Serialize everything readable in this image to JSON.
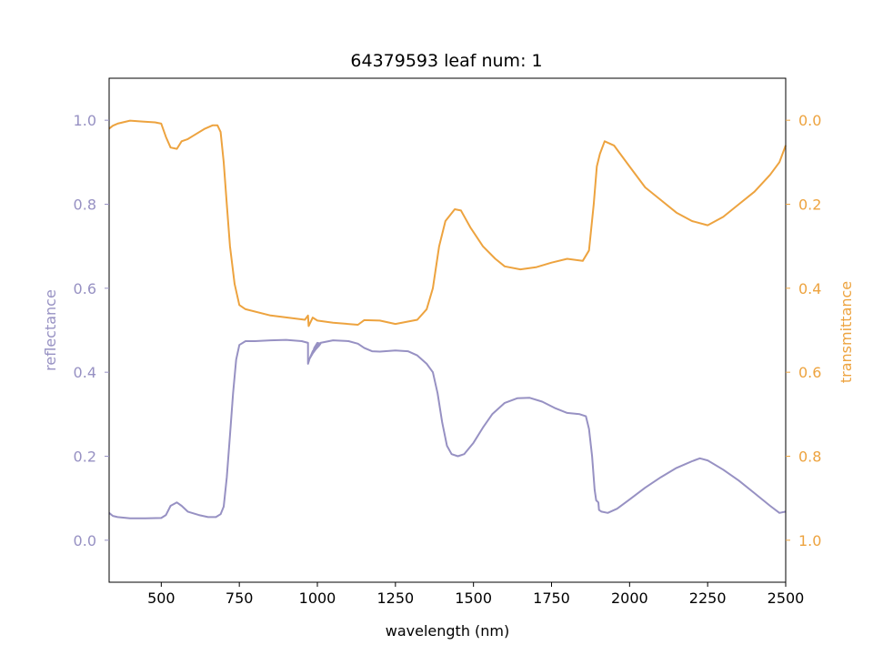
{
  "chart_data": {
    "type": "line",
    "title": "64379593 leaf num: 1",
    "xlabel": "wavelength (nm)",
    "ylabel_left": "reflectance",
    "ylabel_right": "transmittance",
    "xlim": [
      333,
      2500
    ],
    "ylim_left": [
      -0.1,
      1.1
    ],
    "ylim_right": [
      1.1,
      -0.1
    ],
    "right_axis_inverted": true,
    "grid": false,
    "x_ticks": [
      500,
      750,
      1000,
      1250,
      1500,
      1750,
      2000,
      2250,
      2500
    ],
    "x_tick_labels": [
      "500",
      "750",
      "1000",
      "1250",
      "1500",
      "1750",
      "2000",
      "2250",
      "2500"
    ],
    "y_left_ticks": [
      0.0,
      0.2,
      0.4,
      0.6,
      0.8,
      1.0
    ],
    "y_left_tick_labels": [
      "0.0",
      "0.2",
      "0.4",
      "0.6",
      "0.8",
      "1.0"
    ],
    "y_right_ticks": [
      0.0,
      0.2,
      0.4,
      0.6,
      0.8,
      1.0
    ],
    "y_right_tick_labels": [
      "0.0",
      "0.2",
      "0.4",
      "0.6",
      "0.8",
      "1.0"
    ],
    "colors": {
      "reflectance": "#9791c3",
      "transmittance": "#eda33f"
    },
    "series": [
      {
        "axis": "left",
        "color": "#9791c3",
        "points": [
          [
            333,
            0.065
          ],
          [
            345,
            0.058
          ],
          [
            360,
            0.055
          ],
          [
            400,
            0.052
          ],
          [
            450,
            0.052
          ],
          [
            500,
            0.053
          ],
          [
            515,
            0.06
          ],
          [
            530,
            0.082
          ],
          [
            550,
            0.09
          ],
          [
            565,
            0.082
          ],
          [
            585,
            0.068
          ],
          [
            620,
            0.06
          ],
          [
            650,
            0.055
          ],
          [
            675,
            0.055
          ],
          [
            690,
            0.062
          ],
          [
            700,
            0.08
          ],
          [
            710,
            0.15
          ],
          [
            720,
            0.25
          ],
          [
            730,
            0.35
          ],
          [
            740,
            0.43
          ],
          [
            750,
            0.465
          ],
          [
            770,
            0.474
          ],
          [
            800,
            0.474
          ],
          [
            850,
            0.476
          ],
          [
            900,
            0.477
          ],
          [
            950,
            0.474
          ],
          [
            970,
            0.47
          ],
          [
            970,
            0.42
          ],
          [
            975,
            0.432
          ],
          [
            985,
            0.445
          ],
          [
            995,
            0.455
          ],
          [
            1005,
            0.463
          ],
          [
            1010,
            0.468
          ],
          [
            1000,
            0.47
          ],
          [
            990,
            0.458
          ],
          [
            985,
            0.445
          ],
          [
            975,
            0.432
          ],
          [
            985,
            0.45
          ],
          [
            1000,
            0.465
          ],
          [
            1010,
            0.47
          ],
          [
            1050,
            0.476
          ],
          [
            1100,
            0.474
          ],
          [
            1130,
            0.468
          ],
          [
            1150,
            0.458
          ],
          [
            1175,
            0.45
          ],
          [
            1200,
            0.449
          ],
          [
            1250,
            0.452
          ],
          [
            1290,
            0.45
          ],
          [
            1320,
            0.44
          ],
          [
            1350,
            0.42
          ],
          [
            1370,
            0.4
          ],
          [
            1385,
            0.35
          ],
          [
            1400,
            0.28
          ],
          [
            1415,
            0.225
          ],
          [
            1430,
            0.205
          ],
          [
            1450,
            0.2
          ],
          [
            1470,
            0.205
          ],
          [
            1500,
            0.232
          ],
          [
            1530,
            0.268
          ],
          [
            1560,
            0.3
          ],
          [
            1600,
            0.327
          ],
          [
            1640,
            0.338
          ],
          [
            1680,
            0.339
          ],
          [
            1720,
            0.33
          ],
          [
            1760,
            0.315
          ],
          [
            1800,
            0.303
          ],
          [
            1840,
            0.3
          ],
          [
            1860,
            0.295
          ],
          [
            1870,
            0.265
          ],
          [
            1880,
            0.2
          ],
          [
            1888,
            0.12
          ],
          [
            1893,
            0.095
          ],
          [
            1900,
            0.09
          ],
          [
            1902,
            0.072
          ],
          [
            1910,
            0.068
          ],
          [
            1930,
            0.065
          ],
          [
            1960,
            0.075
          ],
          [
            2000,
            0.097
          ],
          [
            2050,
            0.125
          ],
          [
            2100,
            0.15
          ],
          [
            2150,
            0.172
          ],
          [
            2200,
            0.188
          ],
          [
            2225,
            0.195
          ],
          [
            2250,
            0.19
          ],
          [
            2300,
            0.168
          ],
          [
            2350,
            0.142
          ],
          [
            2400,
            0.112
          ],
          [
            2450,
            0.082
          ],
          [
            2480,
            0.065
          ],
          [
            2500,
            0.068
          ]
        ]
      },
      {
        "axis": "right",
        "color": "#eda33f",
        "points": [
          [
            333,
            0.02
          ],
          [
            345,
            0.013
          ],
          [
            360,
            0.008
          ],
          [
            400,
            0.001
          ],
          [
            440,
            0.003
          ],
          [
            480,
            0.005
          ],
          [
            500,
            0.008
          ],
          [
            515,
            0.04
          ],
          [
            530,
            0.065
          ],
          [
            550,
            0.068
          ],
          [
            565,
            0.05
          ],
          [
            585,
            0.045
          ],
          [
            600,
            0.038
          ],
          [
            640,
            0.02
          ],
          [
            665,
            0.012
          ],
          [
            680,
            0.012
          ],
          [
            690,
            0.028
          ],
          [
            700,
            0.1
          ],
          [
            710,
            0.2
          ],
          [
            720,
            0.3
          ],
          [
            735,
            0.39
          ],
          [
            750,
            0.44
          ],
          [
            770,
            0.45
          ],
          [
            850,
            0.465
          ],
          [
            960,
            0.475
          ],
          [
            970,
            0.465
          ],
          [
            972,
            0.49
          ],
          [
            985,
            0.47
          ],
          [
            1000,
            0.477
          ],
          [
            1050,
            0.482
          ],
          [
            1130,
            0.487
          ],
          [
            1150,
            0.476
          ],
          [
            1200,
            0.477
          ],
          [
            1250,
            0.485
          ],
          [
            1320,
            0.475
          ],
          [
            1350,
            0.45
          ],
          [
            1370,
            0.4
          ],
          [
            1390,
            0.3
          ],
          [
            1410,
            0.24
          ],
          [
            1440,
            0.212
          ],
          [
            1460,
            0.215
          ],
          [
            1490,
            0.255
          ],
          [
            1530,
            0.3
          ],
          [
            1570,
            0.33
          ],
          [
            1600,
            0.348
          ],
          [
            1650,
            0.355
          ],
          [
            1700,
            0.35
          ],
          [
            1750,
            0.339
          ],
          [
            1800,
            0.33
          ],
          [
            1850,
            0.335
          ],
          [
            1870,
            0.31
          ],
          [
            1885,
            0.2
          ],
          [
            1895,
            0.11
          ],
          [
            1905,
            0.08
          ],
          [
            1920,
            0.05
          ],
          [
            1950,
            0.06
          ],
          [
            2000,
            0.11
          ],
          [
            2050,
            0.16
          ],
          [
            2100,
            0.19
          ],
          [
            2150,
            0.22
          ],
          [
            2200,
            0.24
          ],
          [
            2250,
            0.25
          ],
          [
            2300,
            0.23
          ],
          [
            2350,
            0.2
          ],
          [
            2400,
            0.17
          ],
          [
            2450,
            0.13
          ],
          [
            2480,
            0.1
          ],
          [
            2500,
            0.06
          ]
        ]
      }
    ]
  }
}
